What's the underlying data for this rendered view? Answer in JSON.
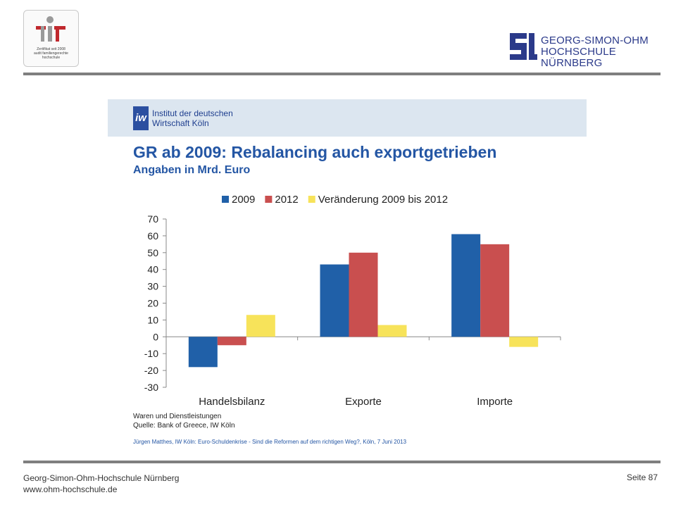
{
  "header": {
    "cert_badge": {
      "icon": "family-friendly-university-logo",
      "lines": [
        "Zertifikat seit 2008",
        "audit familiengerechte",
        "hochschule"
      ]
    },
    "university": {
      "line1": "GEORG-SIMON-OHM",
      "line2": "HOCHSCHULE NÜRNBERG",
      "brand_color": "#2b3a8a"
    }
  },
  "slide": {
    "institute": {
      "logo_text": "iw",
      "line1": "Institut der deutschen",
      "line2": "Wirtschaft Köln"
    },
    "title": "GR ab 2009: Rebalancing auch exportgetrieben",
    "subtitle": "Angaben in Mrd. Euro",
    "note_line1": "Waren und Dienstleistungen",
    "note_line2": "Quelle:  Bank of Greece, IW Köln",
    "credit": "Jürgen Matthes, IW Köln: Euro-Schuldenkrise - Sind die Reformen auf dem richtigen Weg?, Köln, 7 Juni 2013"
  },
  "chart_data": {
    "type": "bar",
    "categories": [
      "Handelsbilanz",
      "Exporte",
      "Importe"
    ],
    "series": [
      {
        "name": "2009",
        "values": [
          -18,
          43,
          61
        ],
        "color": "#2060a8"
      },
      {
        "name": "2012",
        "values": [
          -5,
          50,
          55
        ],
        "color": "#c94f4f"
      },
      {
        "name": "Veränderung 2009 bis 2012",
        "values": [
          13,
          7,
          -6
        ],
        "color": "#f7e35a"
      }
    ],
    "ylim": [
      -30,
      70
    ],
    "yticks": [
      "70",
      "60",
      "50",
      "40",
      "30",
      "20",
      "10",
      "0",
      "-10",
      "-20",
      "-30"
    ],
    "legend_position": "top",
    "grid": false
  },
  "footer": {
    "org": "Georg-Simon-Ohm-Hochschule Nürnberg",
    "url": "www.ohm-hochschule.de",
    "page": "Seite 87"
  }
}
